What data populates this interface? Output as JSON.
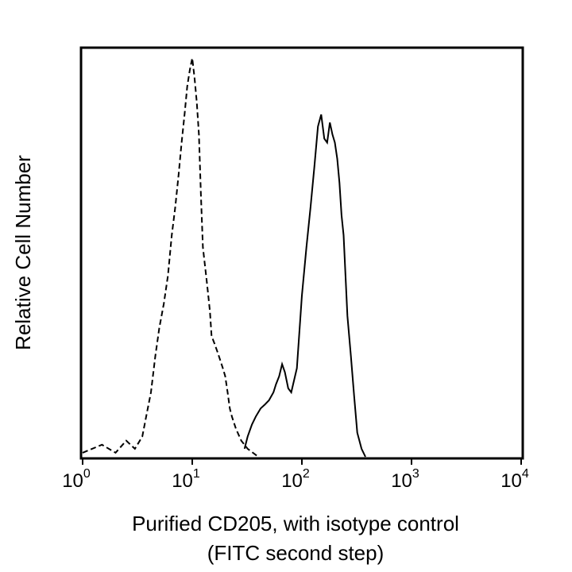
{
  "chart_data": {
    "type": "line",
    "title": "",
    "xlabel": [
      "Purified CD205, with isotype control",
      "(FITC second step)"
    ],
    "ylabel": "Relative Cell Number",
    "x_scale": "log",
    "xlim": [
      1,
      10000
    ],
    "ylim": [
      0,
      1
    ],
    "x_ticks": [
      {
        "value": 1,
        "base": "10",
        "exp": "0"
      },
      {
        "value": 10,
        "base": "10",
        "exp": "1"
      },
      {
        "value": 100,
        "base": "10",
        "exp": "2"
      },
      {
        "value": 1000,
        "base": "10",
        "exp": "3"
      },
      {
        "value": 10000,
        "base": "10",
        "exp": "4"
      }
    ],
    "grid": false,
    "legend": "none",
    "series": [
      {
        "style": "dashed",
        "color": "#000000",
        "x": [
          1.0,
          1.5,
          2.0,
          2.5,
          3.0,
          3.5,
          3.8,
          4.2,
          4.6,
          5.0,
          5.5,
          6.0,
          6.5,
          7.0,
          7.5,
          8.0,
          8.5,
          9.0,
          9.5,
          10.0,
          10.5,
          11.0,
          11.5,
          12.0,
          12.5,
          13.0,
          13.5,
          14.0,
          14.5,
          15.0,
          16.0,
          17.0,
          18.0,
          19.0,
          20.0,
          21.0,
          22.0,
          23.0,
          25.0,
          28.0,
          32.0,
          40.0
        ],
        "y": [
          0.01,
          0.03,
          0.01,
          0.04,
          0.02,
          0.05,
          0.1,
          0.16,
          0.25,
          0.32,
          0.38,
          0.45,
          0.55,
          0.62,
          0.7,
          0.78,
          0.85,
          0.92,
          0.96,
          0.99,
          0.94,
          0.88,
          0.8,
          0.65,
          0.52,
          0.48,
          0.44,
          0.4,
          0.36,
          0.3,
          0.28,
          0.26,
          0.24,
          0.22,
          0.2,
          0.16,
          0.12,
          0.1,
          0.07,
          0.04,
          0.02,
          0.0
        ]
      },
      {
        "style": "solid",
        "color": "#000000",
        "x": [
          30.0,
          32.0,
          35.0,
          38.0,
          42.0,
          46.0,
          50.0,
          55.0,
          58.0,
          62.0,
          66.0,
          70.0,
          75.0,
          80.0,
          90.0,
          100.0,
          110.0,
          120.0,
          130.0,
          140.0,
          150.0,
          160.0,
          170.0,
          180.0,
          190.0,
          200.0,
          210.0,
          220.0,
          230.0,
          240.0,
          250.0,
          260.0,
          280.0,
          300.0,
          320.0,
          350.0,
          380.0
        ],
        "y": [
          0.02,
          0.05,
          0.08,
          0.1,
          0.12,
          0.13,
          0.14,
          0.16,
          0.18,
          0.2,
          0.23,
          0.21,
          0.17,
          0.16,
          0.22,
          0.4,
          0.52,
          0.62,
          0.72,
          0.82,
          0.85,
          0.79,
          0.78,
          0.83,
          0.8,
          0.78,
          0.74,
          0.68,
          0.6,
          0.55,
          0.45,
          0.35,
          0.25,
          0.15,
          0.06,
          0.02,
          0.0
        ]
      }
    ]
  }
}
